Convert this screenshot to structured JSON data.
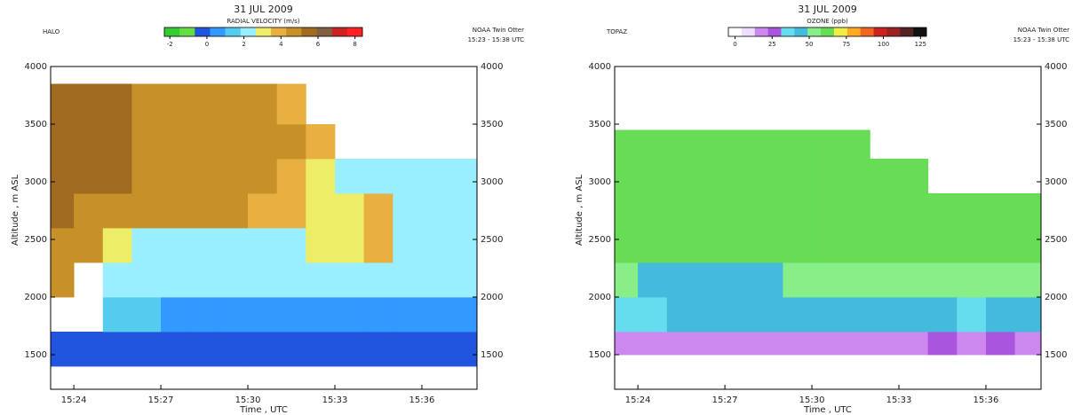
{
  "chart_data": [
    {
      "type": "heatmap",
      "title": "31 JUL 2009",
      "header_left": "HALO",
      "header_right": [
        "NOAA Twin Otter",
        "15:23 - 15:38 UTC"
      ],
      "colorbar_label": "RADIAL VELOCITY (m/s)",
      "clim": [
        -2.3,
        8.4
      ],
      "cticks": [
        -2,
        0,
        2,
        4,
        6,
        8
      ],
      "colors": [
        "#33cc33",
        "#66dd44",
        "#2255dd",
        "#3399ff",
        "#55ccee",
        "#99eeff",
        "#eeee66",
        "#e8b040",
        "#c89028",
        "#a06a20",
        "#806040",
        "#cc2222",
        "#ff2222"
      ],
      "xlabel": "Time , UTC",
      "ylabel": "Altitude , m ASL",
      "xlim": [
        923.2,
        937.9
      ],
      "xticks": [
        {
          "value": 924,
          "label": "15:24"
        },
        {
          "value": 927,
          "label": "15:27"
        },
        {
          "value": 930,
          "label": "15:30"
        },
        {
          "value": 933,
          "label": "15:33"
        },
        {
          "value": 936,
          "label": "15:36"
        }
      ],
      "ylim": [
        1200,
        4000
      ],
      "yticks": [
        1500,
        2000,
        2500,
        3000,
        3500,
        4000
      ],
      "x_edges": [
        923.2,
        924,
        925,
        926,
        927,
        928,
        929,
        930,
        931,
        932,
        933,
        934,
        935,
        936,
        937,
        937.9
      ],
      "y_edges": [
        1400,
        1700,
        2000,
        2300,
        2600,
        2900,
        3200,
        3500,
        3850
      ],
      "values": [
        [
          0,
          0,
          0,
          0,
          0,
          0,
          0,
          0,
          0,
          0,
          0,
          0,
          0,
          0,
          0
        ],
        [
          null,
          null,
          1.5,
          1,
          0.5,
          0.5,
          0.5,
          0.5,
          0.5,
          0.5,
          0.5,
          0.5,
          0.5,
          0.5,
          0.5
        ],
        [
          5,
          null,
          2,
          2,
          2,
          2,
          2,
          2,
          2,
          2,
          2,
          2.5,
          2,
          2,
          2
        ],
        [
          5,
          5,
          3,
          2.5,
          2.5,
          2.5,
          2.5,
          2,
          2.5,
          3,
          3,
          3.5,
          2.5,
          2,
          2
        ],
        [
          5.5,
          5,
          5,
          4.5,
          4.5,
          4.5,
          4.5,
          4,
          3.5,
          3,
          3,
          3.5,
          2.5,
          2,
          2
        ],
        [
          5.5,
          5.5,
          5.5,
          5,
          4.5,
          4.5,
          4.5,
          4.5,
          4,
          3,
          2.5,
          2.5,
          2.5,
          2,
          2
        ],
        [
          5.5,
          5.5,
          5.5,
          5,
          4.5,
          4.5,
          4.5,
          4.5,
          4.5,
          3.5,
          null,
          null,
          null,
          null,
          null
        ],
        [
          5.5,
          5.5,
          5.5,
          5,
          4.5,
          4.5,
          4.5,
          4.5,
          3.5,
          null,
          null,
          null,
          null,
          null,
          null
        ]
      ]
    },
    {
      "type": "heatmap",
      "title": "31 JUL 2009",
      "header_left": "TOPAZ",
      "header_right": [
        "NOAA Twin Otter",
        "15:23 - 15:38 UTC"
      ],
      "colorbar_label": "OZONE (ppb)",
      "clim": [
        -4.5,
        129
      ],
      "cticks": [
        0,
        25,
        50,
        75,
        100,
        125
      ],
      "colors": [
        "#ffffff",
        "#eeddff",
        "#cc88ee",
        "#aa55dd",
        "#66ddee",
        "#44bbdd",
        "#88ee88",
        "#66dd55",
        "#eeee44",
        "#ffaa22",
        "#ee6622",
        "#cc2222",
        "#992222",
        "#552222",
        "#111111"
      ],
      "xlabel": "Time , UTC",
      "ylabel": "Altitude , m ASL",
      "xlim": [
        923.2,
        937.9
      ],
      "xticks": [
        {
          "value": 924,
          "label": "15:24"
        },
        {
          "value": 927,
          "label": "15:27"
        },
        {
          "value": 930,
          "label": "15:30"
        },
        {
          "value": 933,
          "label": "15:33"
        },
        {
          "value": 936,
          "label": "15:36"
        }
      ],
      "ylim": [
        1200,
        4000
      ],
      "yticks": [
        1500,
        2000,
        2500,
        3000,
        3500,
        4000
      ],
      "x_edges": [
        923.2,
        924,
        925,
        926,
        927,
        928,
        929,
        930,
        931,
        932,
        933,
        934,
        935,
        936,
        937,
        937.9
      ],
      "y_edges": [
        1500,
        1700,
        2000,
        2300,
        2600,
        2900,
        3200,
        3450
      ],
      "values": [
        [
          18,
          18,
          15,
          18,
          15,
          18,
          15,
          18,
          20,
          15,
          20,
          30,
          18,
          30,
          20
        ],
        [
          35,
          38,
          40,
          40,
          40,
          40,
          40,
          40,
          40,
          40,
          42,
          40,
          38,
          40,
          40
        ],
        [
          50,
          45,
          45,
          48,
          48,
          48,
          50,
          50,
          50,
          55,
          55,
          55,
          55,
          55,
          55
        ],
        [
          60,
          58,
          60,
          60,
          62,
          60,
          58,
          62,
          62,
          60,
          60,
          62,
          60,
          60,
          60
        ],
        [
          58,
          60,
          60,
          62,
          60,
          62,
          60,
          65,
          60,
          62,
          60,
          60,
          60,
          60,
          60
        ],
        [
          60,
          58,
          62,
          60,
          60,
          60,
          62,
          65,
          62,
          60,
          58,
          null,
          null,
          null,
          null
        ],
        [
          60,
          60,
          60,
          60,
          62,
          60,
          62,
          60,
          60,
          null,
          null,
          null,
          null,
          null,
          null
        ]
      ]
    }
  ]
}
